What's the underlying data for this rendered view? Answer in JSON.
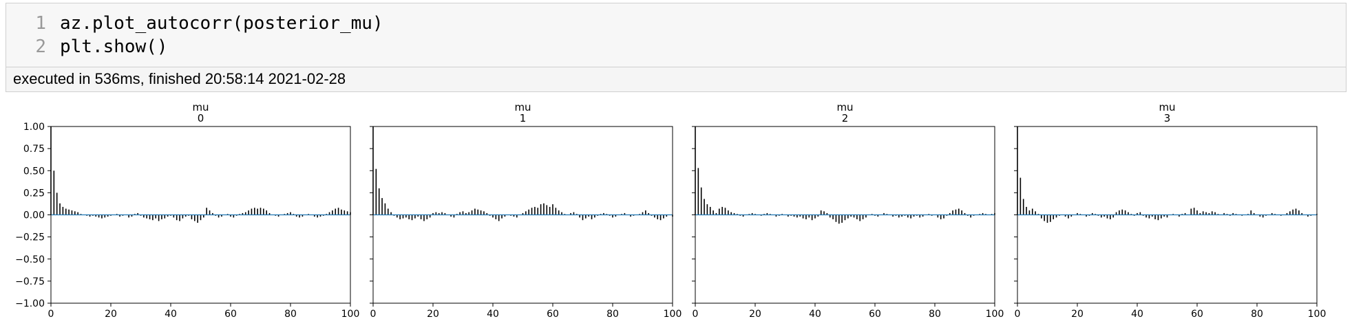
{
  "cell": {
    "line_numbers": [
      "1",
      "2"
    ],
    "code_lines": [
      "az.plot_autocorr(posterior_mu)",
      "plt.show()"
    ],
    "execution_status": "executed in 536ms, finished 20:58:14 2021-02-28"
  },
  "colors": {
    "bar": "#000000",
    "zero_line": "#1f77b4",
    "axes": "#000000"
  },
  "chart_data": [
    {
      "type": "bar",
      "title": "mu\n0",
      "xlim": [
        0,
        100
      ],
      "ylim": [
        -1,
        1
      ],
      "xticks": [
        0,
        20,
        40,
        60,
        80,
        100
      ],
      "yticks": [
        1.0,
        0.75,
        0.5,
        0.25,
        0.0,
        -0.25,
        -0.5,
        -0.75,
        -1.0
      ],
      "ytick_labels": [
        "1.00",
        "0.75",
        "0.50",
        "0.25",
        "0.00",
        "−0.25",
        "−0.50",
        "−0.75",
        "−1.00"
      ],
      "lags": "0-100",
      "values": [
        1.0,
        0.5,
        0.25,
        0.13,
        0.09,
        0.07,
        0.06,
        0.05,
        0.04,
        0.03,
        0.01,
        0.0,
        -0.01,
        -0.02,
        -0.01,
        -0.02,
        -0.03,
        -0.04,
        -0.03,
        -0.02,
        -0.01,
        0.0,
        0.01,
        -0.02,
        -0.01,
        0.0,
        -0.03,
        -0.02,
        0.01,
        0.02,
        -0.01,
        -0.03,
        -0.04,
        -0.05,
        -0.06,
        -0.04,
        -0.07,
        -0.05,
        -0.04,
        -0.02,
        -0.01,
        -0.03,
        -0.06,
        -0.07,
        -0.04,
        -0.02,
        -0.01,
        -0.05,
        -0.07,
        -0.09,
        -0.06,
        -0.03,
        0.08,
        0.05,
        0.02,
        -0.01,
        -0.03,
        -0.02,
        0.0,
        0.01,
        -0.02,
        -0.03,
        -0.01,
        0.01,
        0.02,
        0.03,
        0.05,
        0.07,
        0.08,
        0.07,
        0.08,
        0.07,
        0.05,
        0.02,
        0.0,
        -0.01,
        -0.02,
        0.0,
        0.01,
        0.02,
        0.03,
        0.01,
        -0.02,
        -0.03,
        -0.02,
        0.0,
        0.01,
        0.0,
        -0.02,
        -0.03,
        -0.02,
        -0.01,
        0.01,
        0.03,
        0.05,
        0.07,
        0.08,
        0.06,
        0.05,
        0.04,
        0.03
      ]
    },
    {
      "type": "bar",
      "title": "mu\n1",
      "xlim": [
        0,
        100
      ],
      "ylim": [
        -1,
        1
      ],
      "xticks": [
        0,
        20,
        40,
        60,
        80,
        100
      ],
      "lags": "0-100",
      "values": [
        1.0,
        0.52,
        0.3,
        0.19,
        0.13,
        0.07,
        0.03,
        -0.01,
        -0.03,
        -0.05,
        -0.04,
        -0.03,
        -0.05,
        -0.06,
        -0.04,
        -0.02,
        -0.05,
        -0.07,
        -0.05,
        -0.03,
        0.02,
        0.03,
        0.02,
        0.03,
        0.02,
        0.0,
        -0.02,
        -0.03,
        0.01,
        0.03,
        0.04,
        0.02,
        0.03,
        0.05,
        0.07,
        0.06,
        0.05,
        0.04,
        0.02,
        -0.01,
        -0.03,
        -0.05,
        -0.07,
        -0.04,
        -0.02,
        0.0,
        -0.01,
        -0.02,
        -0.03,
        0.0,
        0.02,
        0.04,
        0.06,
        0.08,
        0.09,
        0.08,
        0.12,
        0.13,
        0.11,
        0.09,
        0.12,
        0.08,
        0.05,
        0.03,
        0.01,
        0.0,
        0.02,
        0.03,
        0.01,
        -0.03,
        -0.06,
        -0.04,
        -0.02,
        -0.05,
        -0.03,
        -0.01,
        0.01,
        0.02,
        0.01,
        -0.01,
        -0.03,
        -0.02,
        0.0,
        0.01,
        0.02,
        0.0,
        -0.02,
        -0.01,
        0.0,
        0.01,
        0.03,
        0.05,
        0.02,
        -0.01,
        -0.03,
        -0.05,
        -0.06,
        -0.04,
        -0.02,
        0.0,
        -0.02
      ]
    },
    {
      "type": "bar",
      "title": "mu\n2",
      "xlim": [
        0,
        100
      ],
      "ylim": [
        -1,
        1
      ],
      "xticks": [
        0,
        20,
        40,
        60,
        80,
        100
      ],
      "lags": "0-100",
      "values": [
        1.0,
        0.53,
        0.31,
        0.18,
        0.12,
        0.09,
        0.05,
        0.02,
        0.07,
        0.09,
        0.08,
        0.05,
        0.03,
        0.02,
        0.01,
        -0.01,
        -0.02,
        0.0,
        0.01,
        0.02,
        0.01,
        0.0,
        -0.01,
        0.01,
        0.02,
        0.01,
        0.0,
        -0.02,
        -0.01,
        0.01,
        0.0,
        -0.02,
        -0.01,
        -0.02,
        -0.03,
        -0.02,
        -0.04,
        -0.05,
        -0.03,
        -0.06,
        -0.04,
        -0.02,
        0.05,
        0.04,
        0.02,
        -0.03,
        -0.05,
        -0.08,
        -0.1,
        -0.09,
        -0.06,
        -0.04,
        -0.02,
        -0.03,
        -0.05,
        -0.07,
        -0.05,
        -0.03,
        0.0,
        0.01,
        -0.01,
        -0.02,
        0.0,
        0.02,
        0.01,
        0.0,
        -0.02,
        -0.01,
        -0.03,
        -0.02,
        -0.01,
        -0.03,
        -0.04,
        -0.02,
        -0.01,
        -0.03,
        -0.02,
        0.0,
        0.01,
        -0.01,
        0.0,
        -0.03,
        -0.05,
        -0.04,
        -0.01,
        0.02,
        0.05,
        0.06,
        0.07,
        0.05,
        0.02,
        -0.01,
        -0.03,
        -0.01,
        0.0,
        0.01,
        0.02,
        0.01,
        0.0,
        0.01,
        0.02
      ]
    },
    {
      "type": "bar",
      "title": "mu\n3",
      "xlim": [
        0,
        100
      ],
      "ylim": [
        -1,
        1
      ],
      "xticks": [
        0,
        20,
        40,
        60,
        80,
        100
      ],
      "lags": "0-100",
      "values": [
        1.0,
        0.42,
        0.18,
        0.09,
        0.05,
        0.07,
        0.04,
        0.01,
        -0.04,
        -0.07,
        -0.09,
        -0.08,
        -0.05,
        -0.03,
        -0.01,
        0.0,
        -0.02,
        -0.04,
        -0.02,
        0.0,
        0.02,
        0.01,
        0.0,
        -0.02,
        -0.01,
        0.02,
        0.01,
        -0.01,
        -0.03,
        -0.02,
        -0.04,
        -0.05,
        -0.03,
        0.03,
        0.05,
        0.06,
        0.05,
        0.03,
        0.01,
        -0.01,
        0.02,
        0.03,
        -0.01,
        -0.03,
        -0.04,
        -0.02,
        -0.05,
        -0.06,
        -0.04,
        -0.02,
        -0.03,
        0.0,
        0.01,
        0.0,
        -0.02,
        0.01,
        0.02,
        0.0,
        0.07,
        0.08,
        0.05,
        0.02,
        0.04,
        0.03,
        0.02,
        0.04,
        0.03,
        0.01,
        0.0,
        0.02,
        0.01,
        -0.01,
        0.02,
        0.01,
        0.0,
        -0.01,
        0.0,
        0.01,
        0.05,
        0.02,
        0.0,
        -0.02,
        -0.03,
        -0.01,
        0.0,
        0.02,
        0.01,
        0.0,
        -0.01,
        0.0,
        0.02,
        0.04,
        0.06,
        0.07,
        0.05,
        0.02,
        0.0,
        -0.02,
        -0.01,
        0.0,
        0.01
      ]
    }
  ]
}
